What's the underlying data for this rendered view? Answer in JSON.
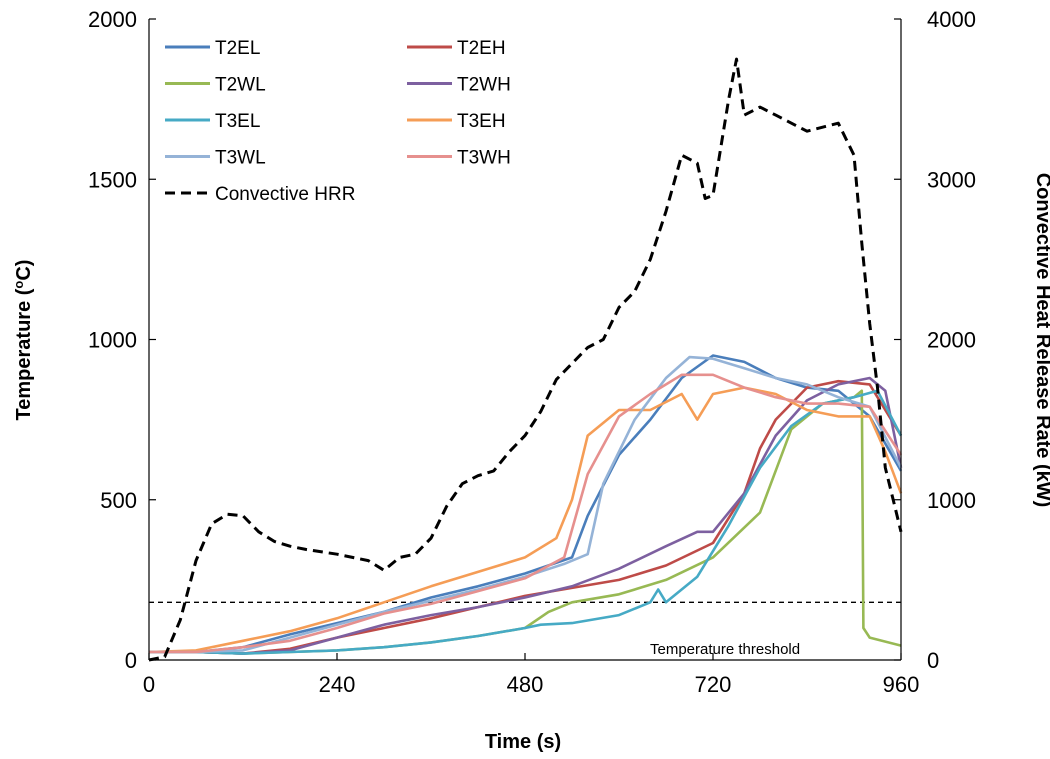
{
  "chart_data": {
    "type": "line",
    "xlabel": "Time (s)",
    "ylabel_left": "Temperature (",
    "ylabel_left_sup": "o",
    "ylabel_left_tail": "C)",
    "ylabel_right": "Convective Heat Release Rate (kW)",
    "xlim": [
      0,
      960
    ],
    "ylim_left": [
      0,
      2000
    ],
    "ylim_right": [
      0,
      4000
    ],
    "xticks": [
      0,
      240,
      480,
      720,
      960
    ],
    "yticks_left": [
      0,
      500,
      1000,
      1500,
      2000
    ],
    "yticks_right": [
      0,
      1000,
      2000,
      3000,
      4000
    ],
    "grid": false,
    "legend_position": "top-left",
    "threshold": {
      "value": 180,
      "label": "Temperature threshold"
    },
    "series": [
      {
        "name": "T2EL",
        "axis": "left",
        "color": "#4a7ebb",
        "x": [
          0,
          60,
          120,
          180,
          240,
          300,
          360,
          420,
          480,
          540,
          560,
          600,
          640,
          680,
          720,
          760,
          800,
          840,
          880,
          920,
          960
        ],
        "y": [
          25,
          25,
          40,
          80,
          115,
          150,
          195,
          230,
          270,
          320,
          450,
          640,
          750,
          880,
          950,
          930,
          880,
          850,
          840,
          760,
          590
        ]
      },
      {
        "name": "T2EH",
        "axis": "left",
        "color": "#be4b48",
        "x": [
          0,
          60,
          120,
          180,
          240,
          300,
          360,
          420,
          480,
          540,
          600,
          660,
          720,
          760,
          780,
          800,
          840,
          880,
          920,
          940,
          960
        ],
        "y": [
          25,
          25,
          20,
          35,
          70,
          100,
          130,
          165,
          200,
          225,
          250,
          295,
          365,
          520,
          660,
          750,
          850,
          870,
          860,
          780,
          700
        ]
      },
      {
        "name": "T2WL",
        "axis": "left",
        "color": "#98b954",
        "x": [
          0,
          60,
          120,
          180,
          240,
          300,
          360,
          420,
          480,
          510,
          540,
          600,
          660,
          720,
          780,
          820,
          860,
          900,
          910,
          912,
          920,
          960
        ],
        "y": [
          25,
          25,
          20,
          25,
          30,
          40,
          55,
          75,
          100,
          150,
          180,
          205,
          250,
          320,
          460,
          720,
          800,
          820,
          840,
          100,
          70,
          45
        ]
      },
      {
        "name": "T2WH",
        "axis": "left",
        "color": "#7d60a0",
        "x": [
          0,
          60,
          120,
          180,
          240,
          300,
          360,
          420,
          480,
          540,
          600,
          660,
          700,
          720,
          760,
          800,
          840,
          880,
          920,
          940,
          960
        ],
        "y": [
          25,
          25,
          20,
          30,
          70,
          110,
          140,
          165,
          195,
          230,
          285,
          355,
          400,
          400,
          520,
          700,
          810,
          860,
          880,
          840,
          600
        ]
      },
      {
        "name": "T3EL",
        "axis": "left",
        "color": "#46aac5",
        "x": [
          0,
          60,
          120,
          180,
          240,
          300,
          360,
          420,
          480,
          500,
          540,
          600,
          640,
          650,
          660,
          700,
          740,
          780,
          820,
          860,
          900,
          930,
          960
        ],
        "y": [
          25,
          25,
          20,
          25,
          30,
          40,
          55,
          75,
          100,
          110,
          115,
          140,
          180,
          220,
          180,
          260,
          420,
          600,
          730,
          800,
          820,
          840,
          700
        ]
      },
      {
        "name": "T3EH",
        "axis": "left",
        "color": "#f59d56",
        "x": [
          0,
          60,
          120,
          180,
          240,
          300,
          360,
          420,
          480,
          520,
          540,
          560,
          600,
          640,
          680,
          700,
          720,
          760,
          800,
          840,
          880,
          920,
          940,
          960
        ],
        "y": [
          25,
          30,
          60,
          90,
          130,
          180,
          230,
          275,
          320,
          380,
          500,
          700,
          780,
          780,
          830,
          750,
          830,
          850,
          830,
          780,
          760,
          760,
          650,
          520
        ]
      },
      {
        "name": "T3WL",
        "axis": "left",
        "color": "#95b3d7",
        "x": [
          0,
          60,
          120,
          180,
          240,
          300,
          360,
          420,
          480,
          530,
          560,
          580,
          620,
          660,
          690,
          720,
          760,
          800,
          840,
          880,
          920,
          960
        ],
        "y": [
          25,
          25,
          30,
          70,
          110,
          150,
          185,
          220,
          260,
          300,
          330,
          550,
          750,
          880,
          945,
          940,
          910,
          880,
          860,
          820,
          790,
          600
        ]
      },
      {
        "name": "T3WH",
        "axis": "left",
        "color": "#e6908e",
        "x": [
          0,
          60,
          120,
          180,
          240,
          300,
          360,
          420,
          480,
          530,
          560,
          600,
          640,
          680,
          720,
          760,
          800,
          840,
          880,
          920,
          960
        ],
        "y": [
          25,
          25,
          40,
          60,
          100,
          145,
          175,
          215,
          255,
          320,
          580,
          760,
          830,
          890,
          890,
          850,
          820,
          800,
          800,
          790,
          640
        ]
      },
      {
        "name": "Convective HRR",
        "axis": "right",
        "color": "#000000",
        "dashed": true,
        "x": [
          0,
          20,
          40,
          60,
          80,
          100,
          120,
          140,
          160,
          180,
          200,
          240,
          280,
          300,
          320,
          340,
          360,
          380,
          400,
          420,
          440,
          460,
          480,
          500,
          520,
          540,
          560,
          580,
          600,
          620,
          640,
          660,
          680,
          700,
          710,
          720,
          740,
          750,
          760,
          780,
          800,
          840,
          880,
          900,
          910,
          920,
          930,
          940,
          950,
          960
        ],
        "y": [
          0,
          20,
          250,
          620,
          850,
          910,
          900,
          800,
          740,
          710,
          690,
          660,
          620,
          560,
          640,
          660,
          760,
          960,
          1100,
          1150,
          1180,
          1300,
          1400,
          1550,
          1750,
          1850,
          1950,
          2000,
          2200,
          2300,
          2500,
          2800,
          3150,
          3100,
          2880,
          2900,
          3500,
          3750,
          3400,
          3450,
          3400,
          3300,
          3350,
          3150,
          2600,
          2100,
          1700,
          1200,
          1000,
          800
        ]
      }
    ]
  }
}
